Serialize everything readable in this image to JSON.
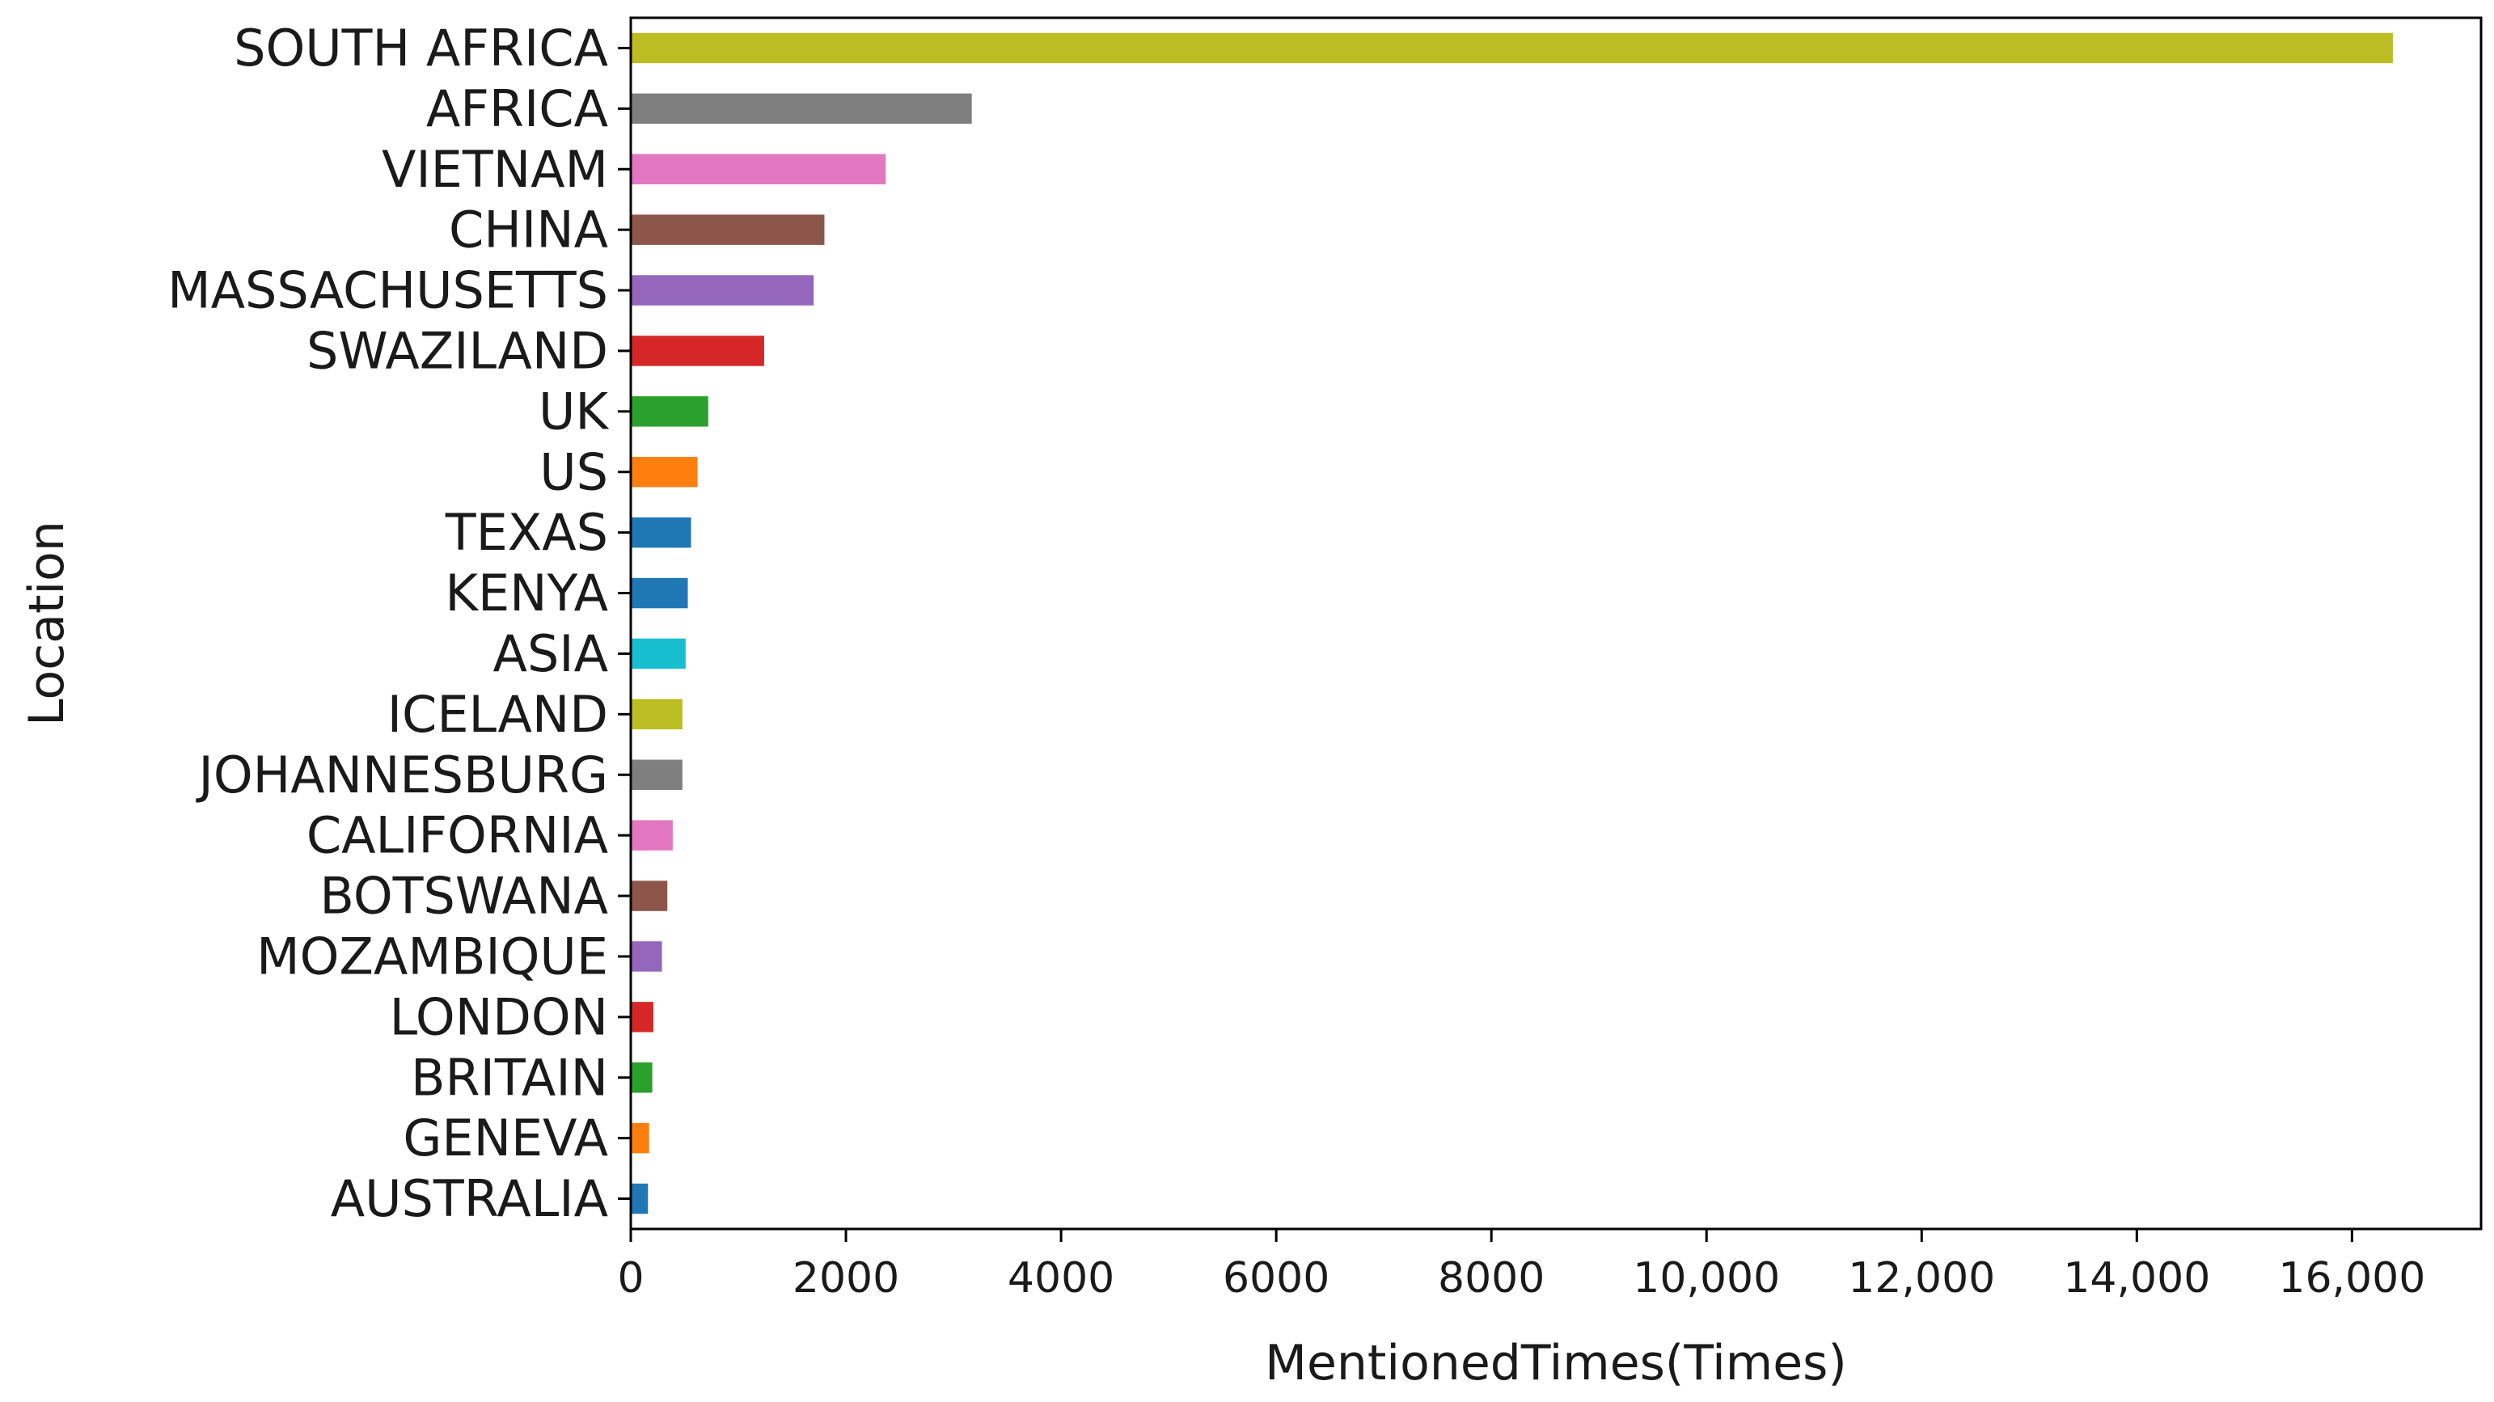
{
  "chart_data": {
    "type": "bar",
    "orientation": "horizontal",
    "categories": [
      "SOUTH AFRICA",
      "AFRICA",
      "VIETNAM",
      "CHINA",
      "MASSACHUSETTS",
      "SWAZILAND",
      "UK",
      "US",
      "TEXAS",
      "KENYA",
      "ASIA",
      "ICELAND",
      "JOHANNESBURG",
      "CALIFORNIA",
      "BOTSWANA",
      "MOZAMBIQUE",
      "LONDON",
      "BRITAIN",
      "GENEVA",
      "AUSTRALIA"
    ],
    "values": [
      16380,
      3170,
      2370,
      1800,
      1700,
      1240,
      720,
      620,
      560,
      530,
      510,
      480,
      480,
      390,
      340,
      290,
      210,
      200,
      170,
      160
    ],
    "colors": [
      "#bcbd22",
      "#7f7f7f",
      "#e377c2",
      "#8c564b",
      "#9467bd",
      "#d62728",
      "#2ca02c",
      "#ff7f0e",
      "#1f77b4",
      "#1f77b4",
      "#17becf",
      "#bcbd22",
      "#7f7f7f",
      "#e377c2",
      "#8c564b",
      "#9467bd",
      "#d62728",
      "#2ca02c",
      "#ff7f0e",
      "#1f77b4"
    ],
    "xlabel": "MentionedTimes(Times)",
    "ylabel": "Location",
    "xlim": [
      0,
      17200
    ],
    "xticks": [
      0,
      2000,
      4000,
      6000,
      8000,
      10000,
      12000,
      14000,
      16000
    ],
    "xtick_labels": [
      "0",
      "2000",
      "4000",
      "6000",
      "8000",
      "10,000",
      "12,000",
      "14,000",
      "16,000"
    ],
    "grid": false,
    "legend": "none"
  }
}
